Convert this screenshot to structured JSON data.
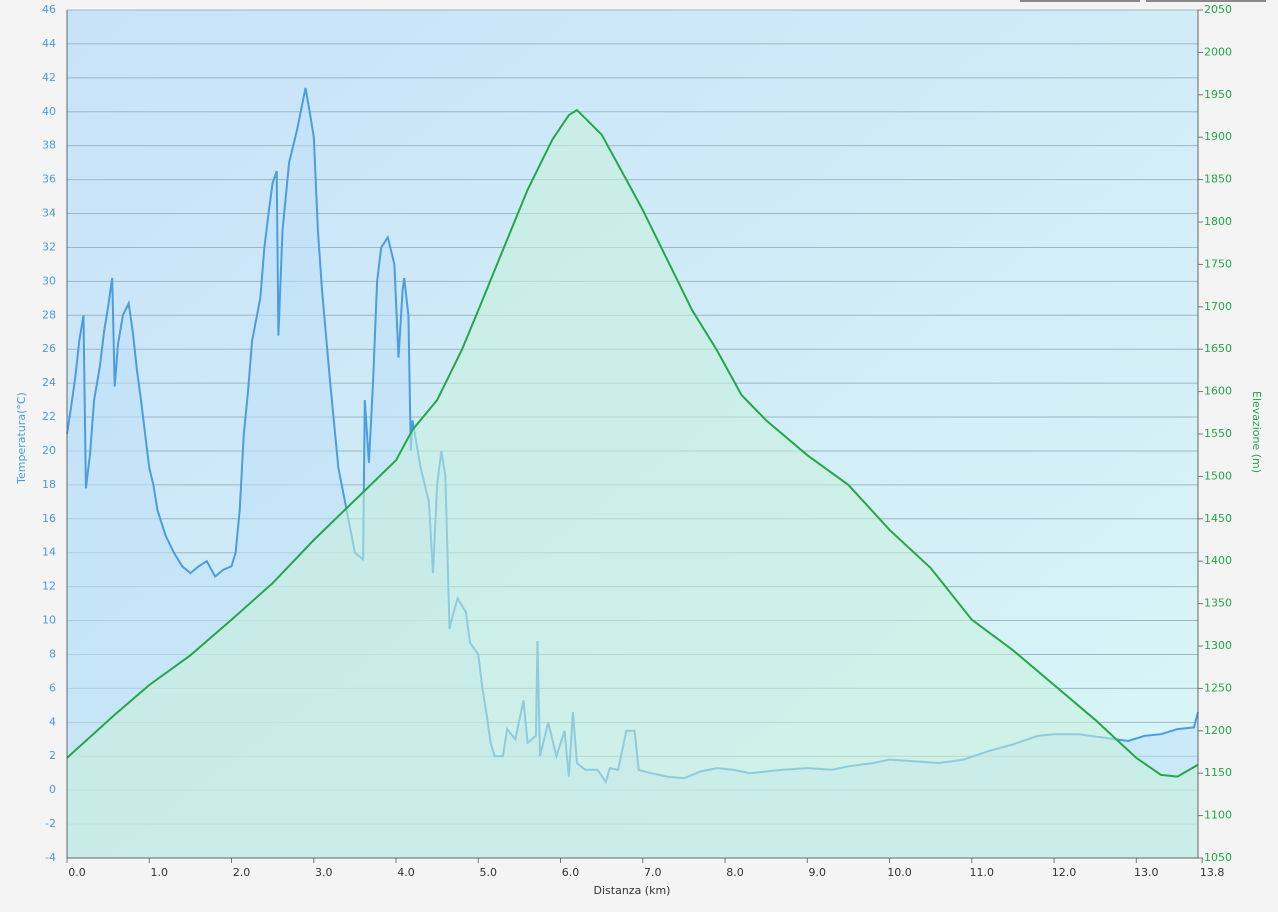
{
  "chart_data": {
    "type": "line",
    "xlabel": "Distanza  (km)",
    "ylabel": "Temperatura(°C)",
    "y2label": "Elevazione (m)",
    "xlim": [
      0,
      13.75
    ],
    "xticks": [
      {
        "value": 0,
        "label": "0.0"
      },
      {
        "value": 1,
        "label": "1.0"
      },
      {
        "value": 2,
        "label": "2.0"
      },
      {
        "value": 3,
        "label": "3.0"
      },
      {
        "value": 4,
        "label": "4.0"
      },
      {
        "value": 5,
        "label": "5.0"
      },
      {
        "value": 6,
        "label": "6.0"
      },
      {
        "value": 7,
        "label": "7.0"
      },
      {
        "value": 8,
        "label": "8.0"
      },
      {
        "value": 9,
        "label": "9.0"
      },
      {
        "value": 10,
        "label": "10.0"
      },
      {
        "value": 11,
        "label": "11.0"
      },
      {
        "value": 12,
        "label": "12.0"
      },
      {
        "value": 13,
        "label": "13.0"
      },
      13.8
    ],
    "ylim": [
      -4,
      46
    ],
    "yticks": [
      -4,
      -2,
      0,
      2,
      4,
      6,
      8,
      10,
      12,
      14,
      16,
      18,
      20,
      22,
      24,
      26,
      28,
      30,
      32,
      34,
      36,
      38,
      40,
      42,
      44,
      46
    ],
    "y2lim": [
      1050,
      2050
    ],
    "y2ticks": [
      1050,
      1100,
      1150,
      1200,
      1250,
      1300,
      1350,
      1400,
      1450,
      1500,
      1550,
      1600,
      1650,
      1700,
      1750,
      1800,
      1850,
      1900,
      1950,
      2000,
      2050
    ],
    "grid": true,
    "series": [
      {
        "name": "Temperatura",
        "color": "#4a9de0",
        "fill": "#bfe0f7",
        "x": [
          0,
          0.05,
          0.1,
          0.15,
          0.2,
          0.23,
          0.28,
          0.33,
          0.4,
          0.45,
          0.5,
          0.55,
          0.58,
          0.62,
          0.68,
          0.75,
          0.8,
          0.85,
          0.9,
          0.95,
          1.0,
          1.05,
          1.1,
          1.2,
          1.3,
          1.4,
          1.5,
          1.6,
          1.7,
          1.8,
          1.9,
          2.0,
          2.05,
          2.1,
          2.15,
          2.2,
          2.25,
          2.35,
          2.4,
          2.45,
          2.5,
          2.55,
          2.57,
          2.62,
          2.7,
          2.8,
          2.9,
          2.95,
          3.0,
          3.05,
          3.1,
          3.2,
          3.3,
          3.4,
          3.5,
          3.6,
          3.62,
          3.67,
          3.72,
          3.77,
          3.82,
          3.9,
          3.98,
          4.03,
          4.08,
          4.1,
          4.15,
          4.18,
          4.2,
          4.3,
          4.4,
          4.45,
          4.5,
          4.55,
          4.6,
          4.65,
          4.7,
          4.75,
          4.85,
          4.9,
          5.0,
          5.05,
          5.1,
          5.15,
          5.2,
          5.3,
          5.35,
          5.45,
          5.55,
          5.6,
          5.7,
          5.72,
          5.75,
          5.85,
          5.95,
          6.05,
          6.1,
          6.15,
          6.2,
          6.3,
          6.45,
          6.55,
          6.6,
          6.7,
          6.8,
          6.9,
          6.95,
          7.1,
          7.3,
          7.5,
          7.7,
          7.9,
          8.1,
          8.3,
          8.5,
          8.7,
          9.0,
          9.3,
          9.5,
          9.8,
          10.0,
          10.3,
          10.6,
          10.9,
          11.2,
          11.5,
          11.8,
          12.0,
          12.3,
          12.6,
          12.9,
          13.1,
          13.3,
          13.5,
          13.7,
          13.75
        ],
        "values": [
          21,
          22.6,
          24.3,
          26.5,
          28,
          17.8,
          19.8,
          23,
          25,
          27,
          28.5,
          30.2,
          23.8,
          26.3,
          28,
          28.7,
          27,
          24.8,
          23,
          21,
          19,
          18,
          16.5,
          15,
          14,
          13.2,
          12.8,
          13.2,
          13.5,
          12.6,
          13,
          13.2,
          14,
          16.5,
          21,
          23.5,
          26.5,
          29,
          32,
          34,
          35.8,
          36.5,
          26.8,
          33,
          37,
          39,
          41.4,
          40,
          38.5,
          33,
          29.5,
          24,
          19,
          16.5,
          14,
          13.6,
          23,
          19.3,
          24,
          30,
          32,
          32.6,
          31,
          25.5,
          29.5,
          30.2,
          28,
          20,
          21.8,
          19,
          17,
          12.8,
          18,
          20,
          18.5,
          9.5,
          10.5,
          11.3,
          10.5,
          8.7,
          8,
          6,
          4.5,
          2.8,
          2,
          2,
          3.6,
          3,
          5.3,
          2.8,
          3.2,
          8.8,
          2,
          4,
          2,
          3.5,
          0.8,
          4.6,
          1.6,
          1.2,
          1.2,
          0.5,
          1.3,
          1.2,
          3.5,
          3.5,
          1.2,
          1,
          0.8,
          0.7,
          1.1,
          1.3,
          1.2,
          1,
          1.1,
          1.2,
          1.3,
          1.2,
          1.4,
          1.6,
          1.8,
          1.7,
          1.6,
          1.8,
          2.3,
          2.7,
          3.2,
          3.3,
          3.3,
          3.1,
          2.9,
          3.2,
          3.3,
          3.6,
          3.7,
          4.6
        ]
      },
      {
        "name": "Elevazione",
        "color": "#22a845",
        "fill": "#c9f0dd",
        "axis": "y2",
        "x": [
          0,
          0.58,
          1.0,
          1.5,
          2.0,
          2.5,
          3.0,
          3.5,
          4.0,
          4.2,
          4.5,
          4.8,
          5.0,
          5.3,
          5.6,
          5.9,
          6.1,
          6.2,
          6.5,
          6.8,
          7.0,
          7.3,
          7.6,
          7.9,
          8.2,
          8.5,
          9.0,
          9.5,
          10.0,
          10.5,
          11.0,
          11.5,
          12.0,
          12.5,
          13.0,
          13.3,
          13.5,
          13.75
        ],
        "values": [
          1168,
          1219,
          1254,
          1289,
          1331,
          1374,
          1425,
          1472,
          1519,
          1555,
          1590,
          1649,
          1696,
          1767,
          1838,
          1897,
          1926,
          1932,
          1903,
          1850,
          1814,
          1755,
          1696,
          1649,
          1596,
          1566,
          1525,
          1490,
          1437,
          1392,
          1331,
          1295,
          1254,
          1213,
          1168,
          1148,
          1146,
          1160
        ]
      }
    ]
  }
}
